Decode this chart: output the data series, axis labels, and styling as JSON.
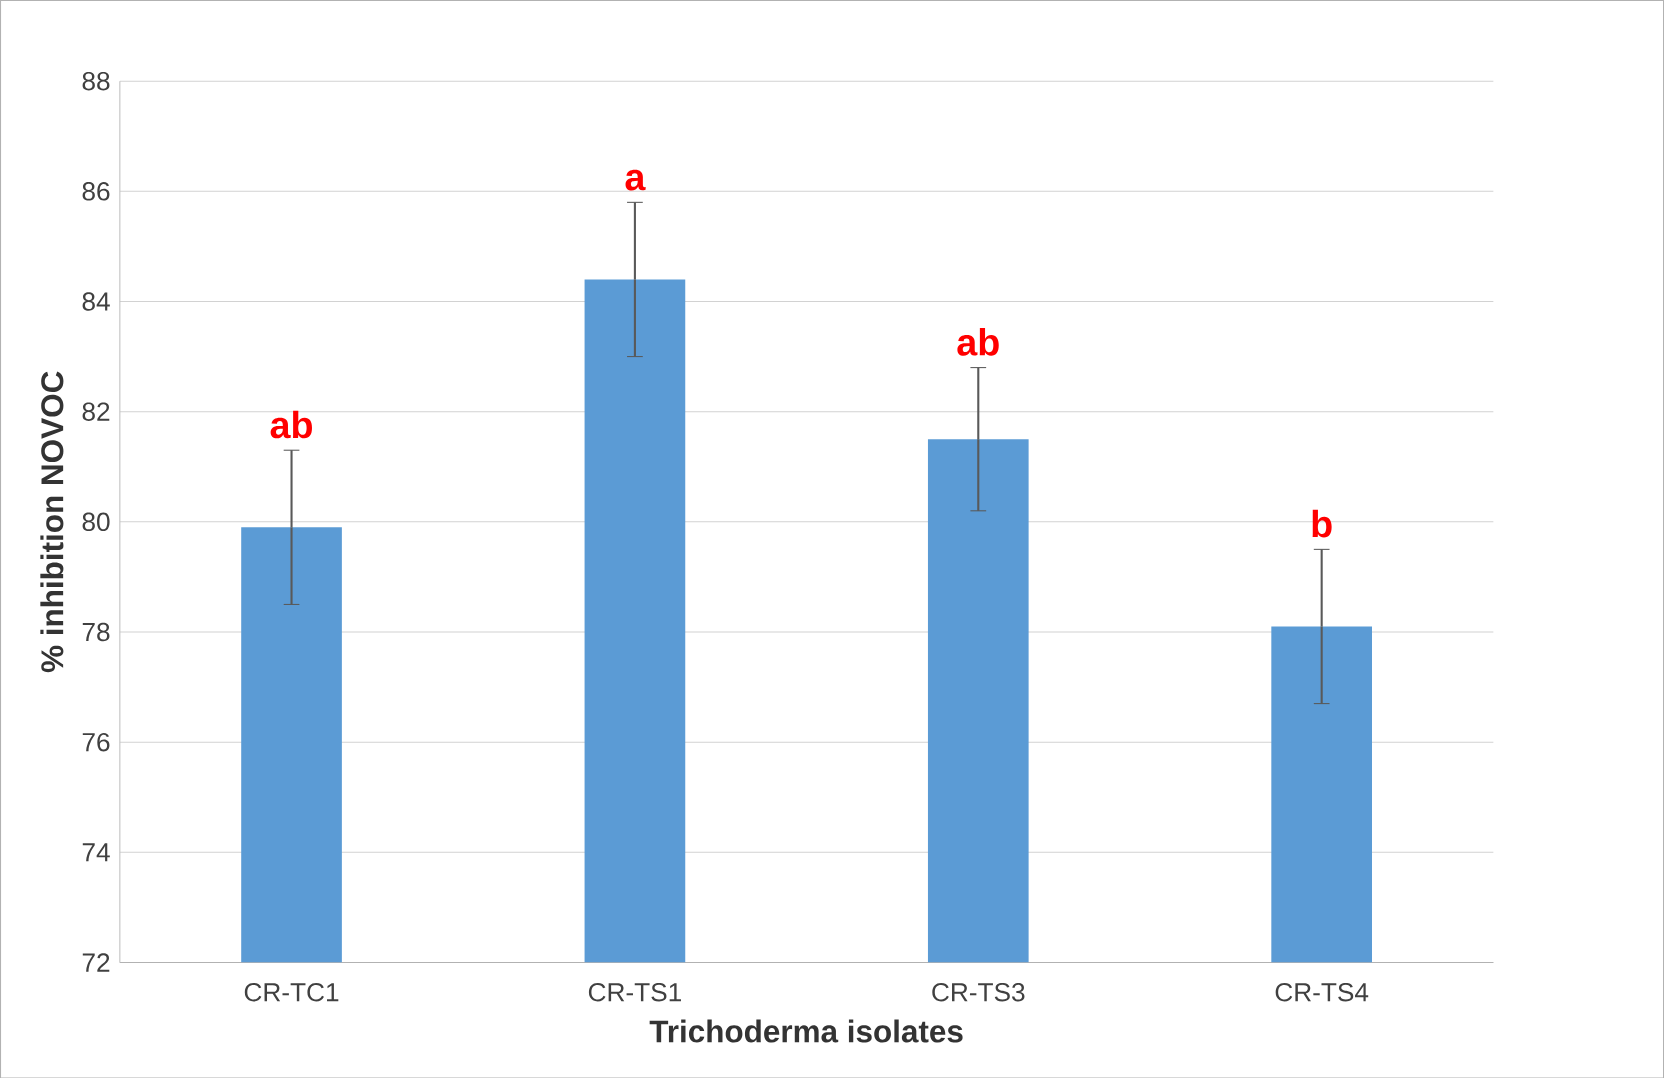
{
  "chart_data": {
    "type": "bar",
    "xlabel": "Trichoderma isolates",
    "ylabel": "% inhibition NOVOC",
    "categories": [
      "CR-TC1",
      "CR-TS1",
      "CR-TS3",
      "CR-TS4"
    ],
    "values": [
      79.9,
      84.4,
      81.5,
      78.1
    ],
    "errors": [
      1.4,
      1.4,
      1.3,
      1.4
    ],
    "color": "#5b9bd5",
    "ylim": [
      72,
      88
    ],
    "yticks": [
      72,
      74,
      76,
      78,
      80,
      82,
      84,
      86,
      88
    ],
    "grid": "y",
    "annotations": [
      "ab",
      "a",
      "ab",
      "b"
    ]
  }
}
